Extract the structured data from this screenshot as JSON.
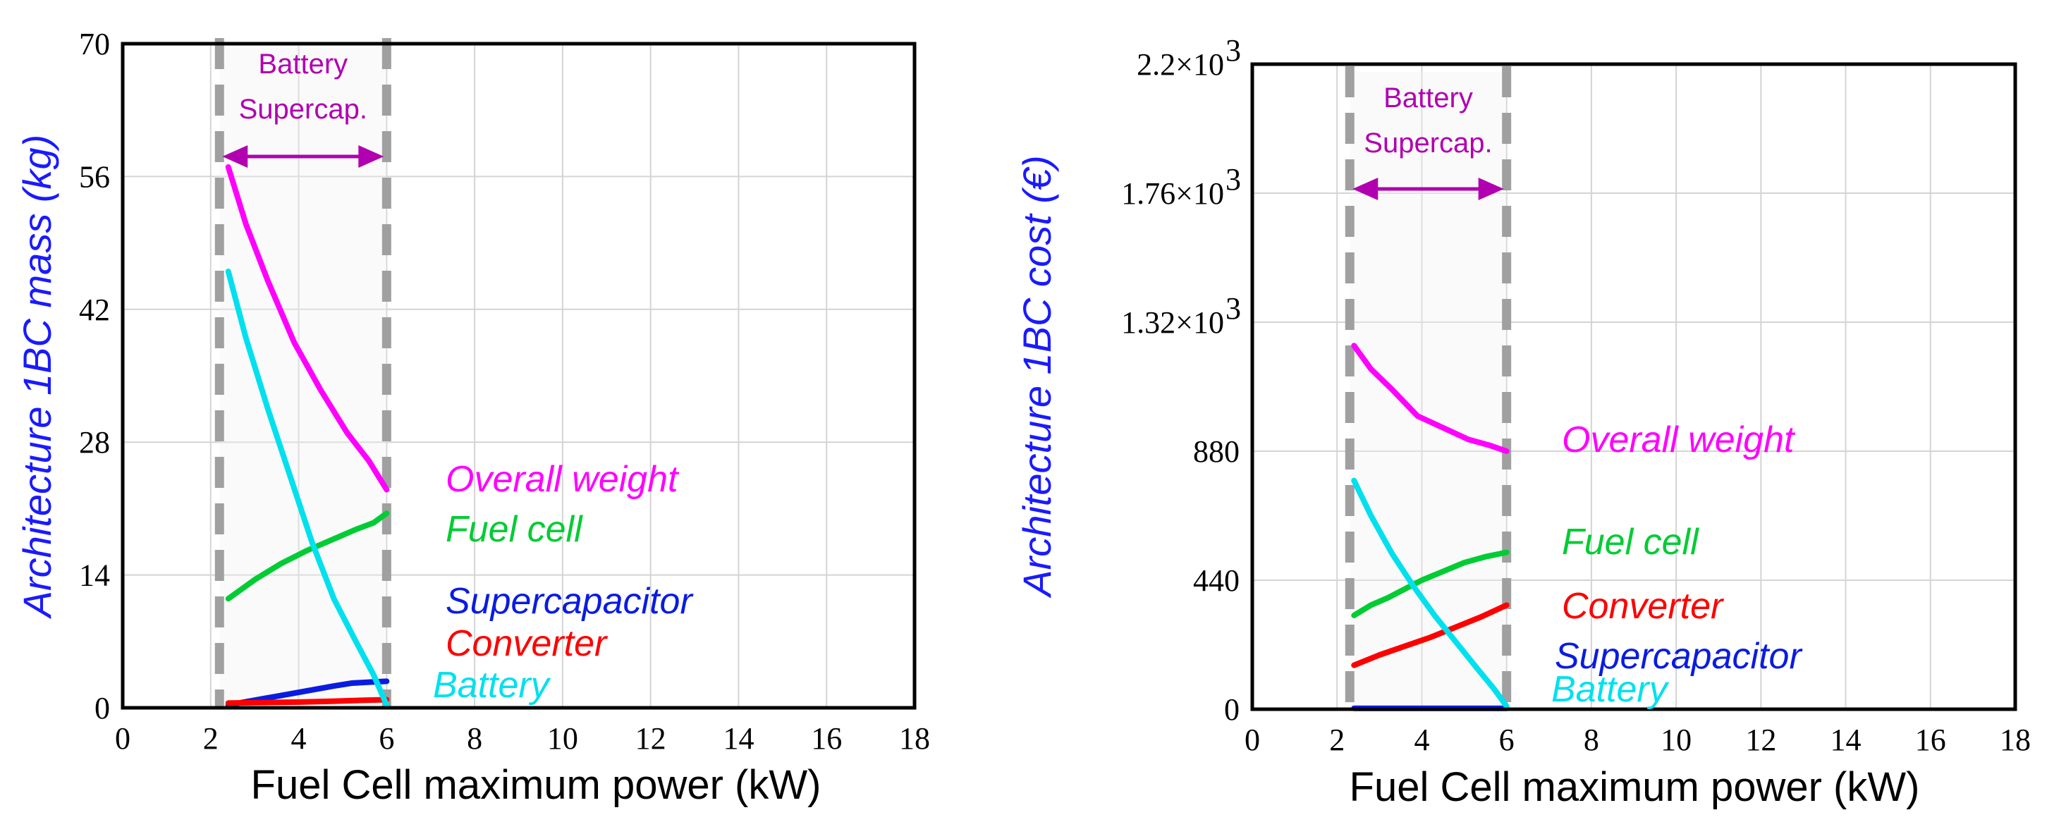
{
  "chart_data": [
    {
      "type": "line",
      "xlabel": "Fuel Cell maximum power (kW)",
      "ylabel": "Architecture 1BC mass (kg)",
      "xlim": [
        0,
        18
      ],
      "ylim": [
        0,
        70
      ],
      "xticks": [
        0,
        2,
        4,
        6,
        8,
        10,
        12,
        14,
        16,
        18
      ],
      "xtick_labels": [
        "0",
        "2",
        "4",
        "6",
        "8",
        "10",
        "12",
        "14",
        "16",
        "18"
      ],
      "yticks": [
        0,
        14,
        28,
        42,
        56,
        70
      ],
      "ytick_labels": [
        "0",
        "14",
        "28",
        "42",
        "56",
        "70"
      ],
      "grid": true,
      "colors": {
        "axis_label": "#1a1aff",
        "band": "#a0a0a0",
        "annotation": "#b000b0"
      },
      "band": {
        "x_start": 2.2,
        "x_end": 6,
        "label_line1": "Battery",
        "label_line2": "Supercap."
      },
      "series": [
        {
          "name": "Overall weight",
          "color": "#ff00ff",
          "x": [
            2.4,
            2.8,
            3.3,
            3.9,
            4.5,
            5.1,
            5.6,
            6.0
          ],
          "values": [
            57,
            51,
            45,
            38.5,
            33.5,
            29,
            26,
            23
          ]
        },
        {
          "name": "Fuel cell",
          "color": "#00cc33",
          "x": [
            2.4,
            3.0,
            3.6,
            4.2,
            4.8,
            5.3,
            5.7,
            6.0
          ],
          "values": [
            11.5,
            13.5,
            15.2,
            16.6,
            17.8,
            18.8,
            19.5,
            20.5
          ]
        },
        {
          "name": "Supercapacitor",
          "color": "#0a1ce0",
          "x": [
            2.4,
            3.0,
            3.6,
            4.2,
            4.8,
            5.2,
            5.6,
            6.0
          ],
          "values": [
            0.3,
            0.8,
            1.3,
            1.8,
            2.3,
            2.6,
            2.7,
            2.8
          ]
        },
        {
          "name": "Converter",
          "color": "#ff0000",
          "x": [
            2.4,
            3.2,
            4.0,
            4.8,
            5.5,
            6.0
          ],
          "values": [
            0.5,
            0.55,
            0.6,
            0.7,
            0.8,
            0.85
          ]
        },
        {
          "name": "Battery",
          "color": "#00e0ee",
          "x": [
            2.4,
            2.8,
            3.3,
            3.8,
            4.3,
            4.8,
            5.3,
            5.7,
            6.0
          ],
          "values": [
            46,
            39,
            31.5,
            24.5,
            17.5,
            11.5,
            7,
            3.5,
            0.3
          ]
        }
      ]
    },
    {
      "type": "line",
      "xlabel": "Fuel Cell maximum power (kW)",
      "ylabel": "Architecture 1BC cost (€)",
      "xlim": [
        0,
        18
      ],
      "ylim": [
        0,
        2200
      ],
      "xticks": [
        0,
        2,
        4,
        6,
        8,
        10,
        12,
        14,
        16,
        18
      ],
      "xtick_labels": [
        "0",
        "2",
        "4",
        "6",
        "8",
        "10",
        "12",
        "14",
        "16",
        "18"
      ],
      "yticks": [
        0,
        440,
        880,
        1320,
        1760,
        2200
      ],
      "ytick_labels": [
        "0",
        "440",
        "880",
        "1.32×10",
        "1.76×10",
        "2.2×10"
      ],
      "ytick_exponent": "3",
      "grid": true,
      "colors": {
        "axis_label": "#1a1aff",
        "band": "#a0a0a0",
        "annotation": "#b000b0"
      },
      "band": {
        "x_start": 2.3,
        "x_end": 6,
        "label_line1": "Battery",
        "label_line2": "Supercap."
      },
      "series": [
        {
          "name": "Overall weight",
          "color": "#ff00ff",
          "x": [
            2.4,
            2.8,
            3.3,
            3.9,
            4.5,
            5.1,
            5.6,
            6.0
          ],
          "values": [
            1240,
            1160,
            1090,
            1000,
            960,
            920,
            900,
            880
          ]
        },
        {
          "name": "Fuel cell",
          "color": "#00cc33",
          "x": [
            2.4,
            2.8,
            3.2,
            3.6,
            4.0,
            4.5,
            5.0,
            5.5,
            6.0
          ],
          "values": [
            320,
            355,
            380,
            410,
            440,
            470,
            500,
            520,
            535
          ]
        },
        {
          "name": "Converter",
          "color": "#ff0000",
          "x": [
            2.4,
            3.0,
            3.6,
            4.2,
            4.8,
            5.4,
            6.0
          ],
          "values": [
            150,
            185,
            215,
            245,
            280,
            315,
            355
          ]
        },
        {
          "name": "Supercapacitor",
          "color": "#0a1ce0",
          "x": [
            2.4,
            3.5,
            4.5,
            5.5,
            6.0
          ],
          "values": [
            3,
            3,
            3,
            3,
            3
          ]
        },
        {
          "name": "Battery",
          "color": "#00e0ee",
          "x": [
            2.4,
            2.8,
            3.3,
            3.8,
            4.3,
            4.8,
            5.3,
            5.7,
            6.0
          ],
          "values": [
            780,
            660,
            530,
            420,
            320,
            230,
            140,
            70,
            10
          ]
        }
      ]
    }
  ]
}
